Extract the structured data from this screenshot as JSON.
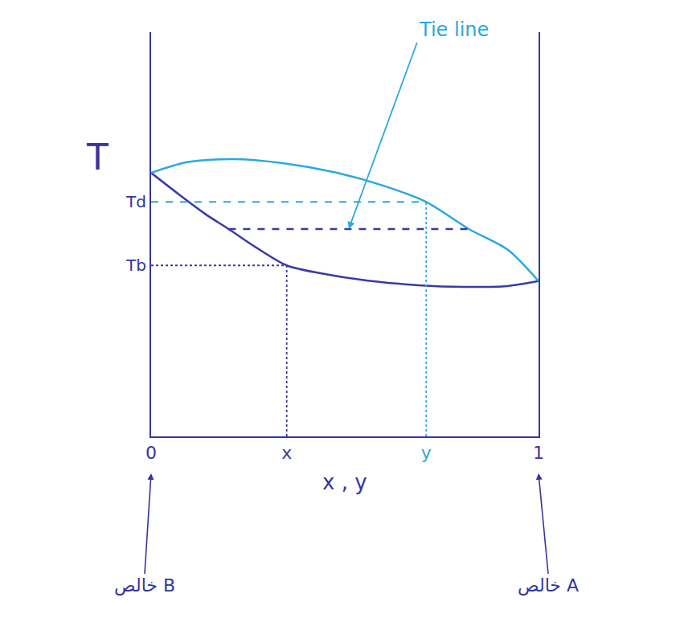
{
  "chart_data": {
    "type": "line",
    "xlabel": "x , y",
    "ylabel": "T",
    "xlim": [
      0,
      1
    ],
    "ylim": [
      0,
      100
    ],
    "xticks": [
      0,
      {
        "value": 0.35,
        "label": "x"
      },
      {
        "value": 0.71,
        "label": "y"
      },
      1
    ],
    "yticks": [
      {
        "value": 42.3,
        "label": "Tb"
      },
      {
        "value": 58,
        "label": "Td"
      }
    ],
    "grid": false,
    "series": [
      {
        "color": "#3a3aa6",
        "x": [
          0,
          0.07,
          0.14,
          0.2,
          0.27,
          0.35,
          0.44,
          0.56,
          0.69,
          0.81,
          0.92,
          1
        ],
        "values": [
          65.2,
          60.0,
          55.0,
          51.3,
          46.8,
          42.3,
          40.3,
          38.5,
          37.4,
          37.0,
          37.2,
          38.4
        ]
      },
      {
        "color": "#2aa9df",
        "x": [
          0,
          0.09,
          0.21,
          0.34,
          0.48,
          0.6,
          0.71,
          0.82,
          0.92,
          1
        ],
        "values": [
          65.2,
          67.8,
          68.6,
          67.6,
          65.2,
          62.0,
          58.0,
          51.3,
          46.2,
          38.4
        ]
      },
      {
        "color": "#3a3aa6",
        "line_style": "dash",
        "x": [
          0.2,
          0.82
        ],
        "values": [
          51.3,
          51.3
        ]
      }
    ],
    "annotations": [
      {
        "text": "Tie line",
        "color": "#2aa9df"
      }
    ],
    "end_labels": [
      "خالص B",
      "خالص A"
    ]
  }
}
